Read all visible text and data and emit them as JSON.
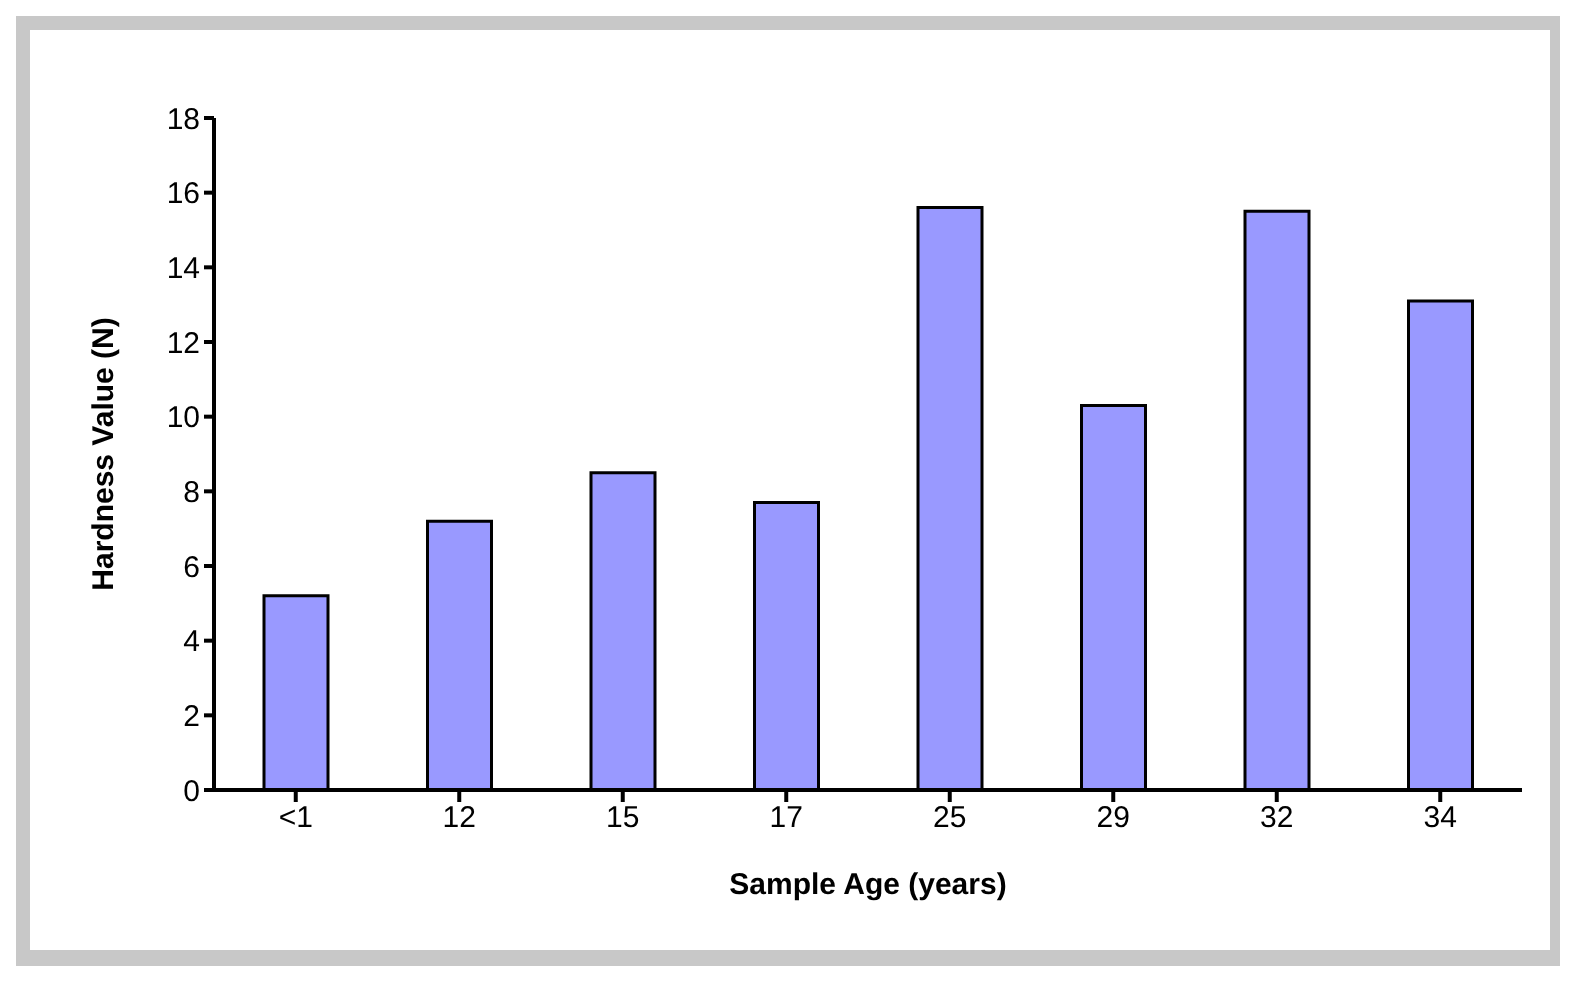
{
  "chart_data": {
    "type": "bar",
    "xlabel": "Sample Age (years)",
    "ylabel": "Hardness Value (N)",
    "categories": [
      "<1",
      "12",
      "15",
      "17",
      "25",
      "29",
      "32",
      "34"
    ],
    "values": [
      5.2,
      7.2,
      8.5,
      7.7,
      15.6,
      10.3,
      15.5,
      13.1
    ],
    "color": "#9999ff",
    "ylim": [
      0,
      18
    ],
    "yticks": [
      0,
      2,
      4,
      6,
      8,
      10,
      12,
      14,
      16,
      18
    ],
    "grid": false,
    "legend": false
  }
}
